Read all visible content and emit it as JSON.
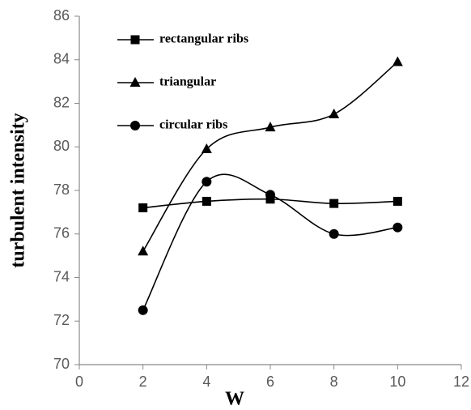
{
  "chart_data": {
    "type": "line",
    "x_label": "W",
    "y_label": "turbulent intensity",
    "x": [
      2,
      4,
      6,
      8,
      10
    ],
    "series": [
      {
        "name": "rectangular ribs",
        "color": "#000000",
        "marker": "square",
        "values": [
          77.2,
          77.5,
          77.6,
          77.4,
          77.5
        ]
      },
      {
        "name": "triangular",
        "color": "#000000",
        "marker": "triangle",
        "values": [
          75.2,
          79.9,
          80.9,
          81.5,
          83.9
        ]
      },
      {
        "name": "circular ribs",
        "color": "#000000",
        "marker": "circle",
        "values": [
          72.5,
          78.4,
          77.8,
          76.0,
          76.3
        ]
      }
    ],
    "xlim": [
      0,
      12
    ],
    "xticks": [
      0,
      2,
      4,
      6,
      8,
      10,
      12
    ],
    "ylim": [
      70,
      86
    ],
    "yticks": [
      70,
      72,
      74,
      76,
      78,
      80,
      82,
      84,
      86
    ],
    "smooth": true,
    "legend": "upper left"
  }
}
